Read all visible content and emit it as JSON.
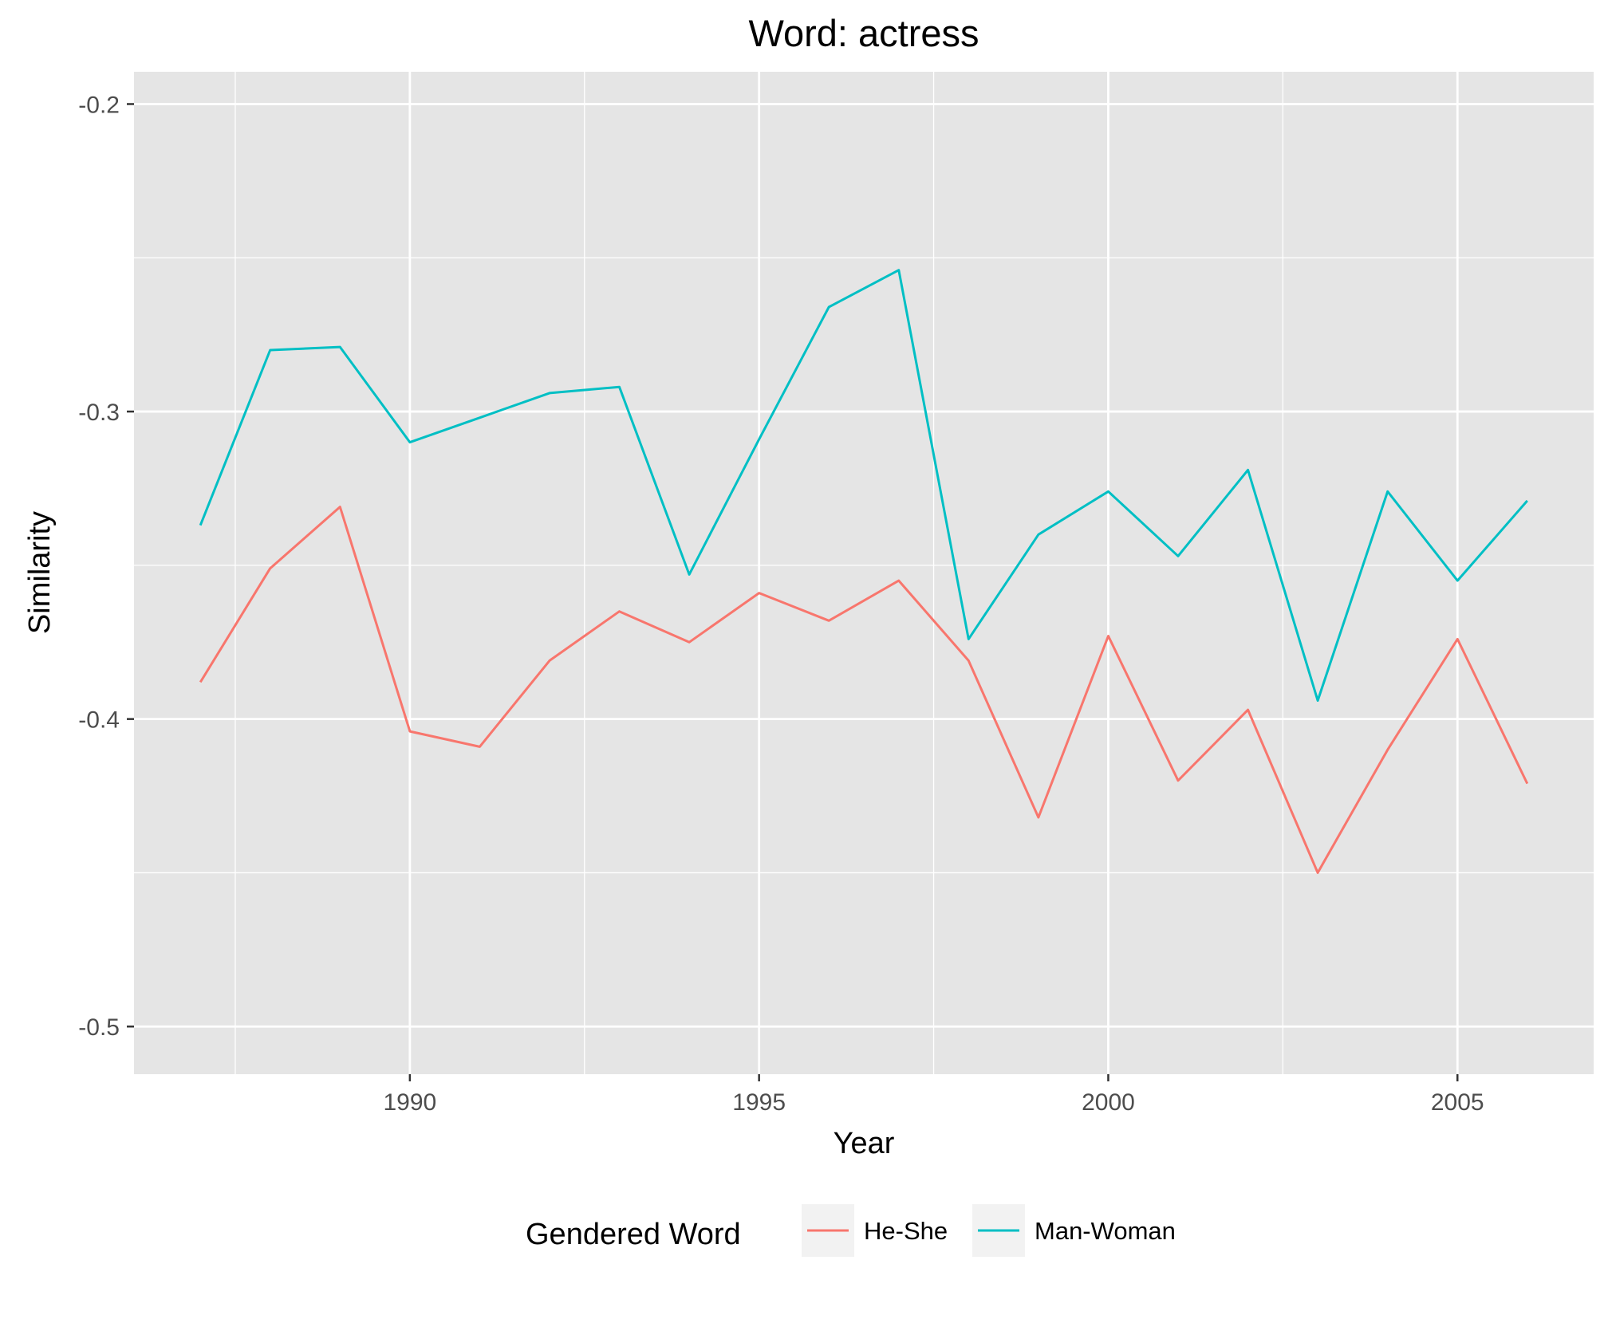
{
  "chart_data": {
    "type": "line",
    "title": "Word: actress",
    "xlabel": "Year",
    "ylabel": "Similarity",
    "x": [
      1987,
      1988,
      1989,
      1990,
      1991,
      1992,
      1993,
      1994,
      1995,
      1996,
      1997,
      1998,
      1999,
      2000,
      2001,
      2002,
      2003,
      2004,
      2005,
      2006
    ],
    "series": [
      {
        "name": "He-She",
        "color": "#F8766D",
        "values": [
          -0.388,
          -0.351,
          -0.331,
          -0.404,
          -0.409,
          -0.381,
          -0.365,
          -0.375,
          -0.359,
          -0.368,
          -0.355,
          -0.381,
          -0.432,
          -0.373,
          -0.42,
          -0.397,
          -0.45,
          -0.41,
          -0.374,
          -0.421
        ]
      },
      {
        "name": "Man-Woman",
        "color": "#00BFC4",
        "values": [
          -0.337,
          -0.28,
          -0.279,
          -0.31,
          -0.302,
          -0.294,
          -0.292,
          -0.353,
          -0.309,
          -0.266,
          -0.254,
          -0.374,
          -0.34,
          -0.326,
          -0.347,
          -0.319,
          -0.394,
          -0.326,
          -0.355,
          -0.329
        ]
      }
    ],
    "xlim": [
      1986.05,
      2006.95
    ],
    "ylim": [
      -0.5155,
      -0.1895
    ],
    "xticks": [
      1990,
      1995,
      2000,
      2005
    ],
    "xtick_labels": [
      "1990",
      "1995",
      "2000",
      "2005"
    ],
    "yticks": [
      -0.5,
      -0.4,
      -0.3,
      -0.2
    ],
    "ytick_labels": [
      "-0.5",
      "-0.4",
      "-0.3",
      "-0.2"
    ],
    "grid": true,
    "panel_background": "#E5E5E5",
    "grid_color": "#FFFFFF",
    "legend": {
      "title": "Gendered Word",
      "position": "bottom",
      "items": [
        "He-She",
        "Man-Woman"
      ]
    }
  }
}
